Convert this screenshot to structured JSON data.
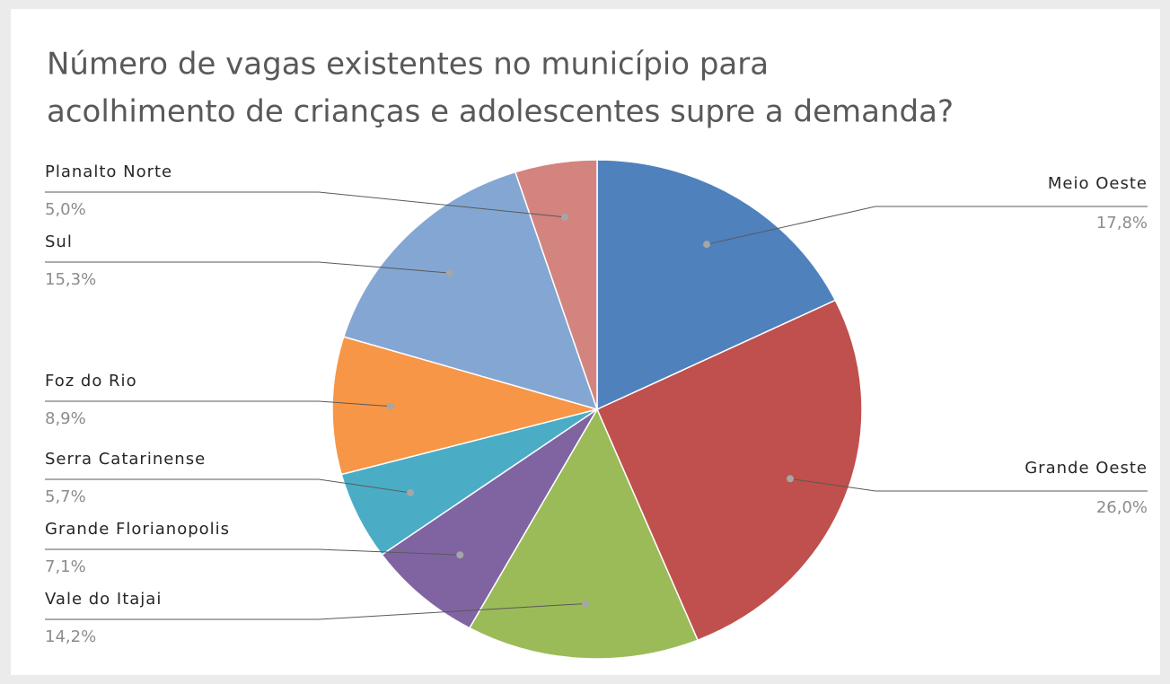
{
  "chart_data": {
    "type": "pie",
    "title_lines": [
      "Número de vagas existentes no município para",
      "acolhimento de crianças e adolescentes supre a demanda?"
    ],
    "categories": [
      "Meio Oeste",
      "Grande Oeste",
      "Vale do Itajai",
      "Grande Florianopolis",
      "Serra Catarinense",
      "Foz do Rio",
      "Sul",
      "Planalto Norte"
    ],
    "values": [
      17.8,
      26.0,
      14.2,
      7.1,
      5.7,
      8.9,
      15.3,
      5.0
    ],
    "value_labels": [
      "17,8%",
      "26,0%",
      "14,2%",
      "7,1%",
      "5,7%",
      "8,9%",
      "15,3%",
      "5,0%"
    ],
    "colors": [
      "#4f81bd",
      "#c0504d",
      "#9bbb59",
      "#8064a2",
      "#4bacc6",
      "#f79646",
      "#84a6d3",
      "#d3847f"
    ]
  }
}
